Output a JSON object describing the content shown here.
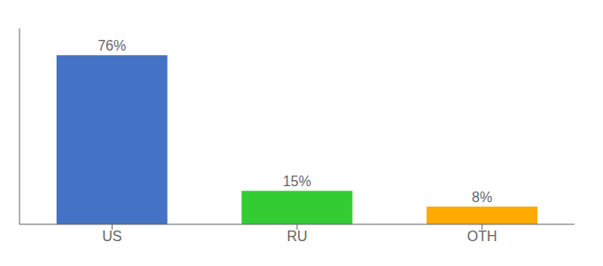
{
  "chart_data": {
    "type": "bar",
    "categories": [
      "US",
      "RU",
      "OTH"
    ],
    "values": [
      76,
      15,
      8
    ],
    "value_labels": [
      "76%",
      "15%",
      "8%"
    ],
    "colors": [
      "#4472c4",
      "#33cc33",
      "#ffaa00"
    ],
    "data_labels": true,
    "ylim": [
      0,
      88
    ],
    "tick_labels": "x"
  }
}
